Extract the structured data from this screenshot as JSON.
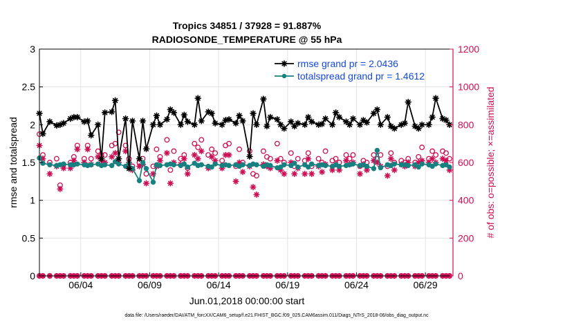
{
  "colors": {
    "rmse": "#000000",
    "spread": "#178080",
    "possible": "#cc0e54",
    "assimilated": "#cc0e54",
    "right_axis": "#cc0e54",
    "legend_text": "#1448d8",
    "grid": "#e3e3e3"
  },
  "chart_data": {
    "type": "line",
    "title": "Tropics 34851 / 37928 = 91.887%",
    "subtitle": "RADIOSONDE_TEMPERATURE @ 55 hPa",
    "xlabel": "Jun.01,2018 00:00:00 start",
    "ylabel": "rmse and totalspread",
    "y2label": "# of obs: o=possible; ×=assimilated",
    "xlim": [
      1,
      31
    ],
    "ylim": [
      0,
      3
    ],
    "y2lim": [
      0,
      1200
    ],
    "xticks": [
      4,
      9,
      14,
      19,
      24,
      29
    ],
    "xticklabels": [
      "06/04",
      "06/09",
      "06/14",
      "06/19",
      "06/24",
      "06/29"
    ],
    "yticks": [
      0,
      0.5,
      1,
      1.5,
      2,
      2.5,
      3
    ],
    "yticklabels": [
      "0",
      "0.5",
      "1",
      "1.5",
      "2",
      "2.5",
      "3"
    ],
    "y2ticks": [
      0,
      200,
      400,
      600,
      800,
      1000,
      1200
    ],
    "y2ticklabels": [
      "0",
      "200",
      "400",
      "600",
      "800",
      "1000",
      "1200"
    ],
    "legend": {
      "location": "top-right",
      "entries": [
        "rmse grand pr = 2.0436",
        "totalspread grand pr = 1.4612"
      ]
    },
    "footer": "data file: /Users/raeder/DAI/ATM_forcXX/CAM6_setup/f.e21.FHIST_BGC.f09_025.CAM6assim.011/Diags_NTrS_2018-06/obs_diag_output.nc",
    "x": [
      1.0,
      1.25,
      1.75,
      2.25,
      2.5,
      2.75,
      3.25,
      3.5,
      3.75,
      4.25,
      4.5,
      4.75,
      5.25,
      5.5,
      5.75,
      6.25,
      6.5,
      6.75,
      7.25,
      7.5,
      7.75,
      8.25,
      8.5,
      8.75,
      9.25,
      9.5,
      9.75,
      10.25,
      10.5,
      10.75,
      11.25,
      11.5,
      11.75,
      12.25,
      12.5,
      12.75,
      13.25,
      13.5,
      13.75,
      14.25,
      14.5,
      14.75,
      15.25,
      15.5,
      15.75,
      16.25,
      16.5,
      16.75,
      17.25,
      17.5,
      17.75,
      18.25,
      18.5,
      18.75,
      19.25,
      19.5,
      19.75,
      20.25,
      20.5,
      20.75,
      21.25,
      21.5,
      21.75,
      22.25,
      22.5,
      22.75,
      23.25,
      23.5,
      23.75,
      24.25,
      24.5,
      24.75,
      25.25,
      25.5,
      25.75,
      26.25,
      26.5,
      26.75,
      27.25,
      27.5,
      27.75,
      28.25,
      28.5,
      28.75,
      29.25,
      29.5,
      29.75,
      30.25,
      30.5,
      30.75
    ],
    "series": [
      {
        "name": "rmse",
        "values": [
          2.15,
          1.88,
          2.04,
          1.99,
          2.0,
          2.02,
          2.08,
          2.1,
          2.1,
          2.04,
          2.05,
          1.86,
          2.0,
          1.55,
          2.16,
          2.17,
          2.32,
          1.55,
          2.08,
          1.42,
          2.05,
          1.55,
          2.05,
          1.68,
          2.0,
          2.12,
          2.0,
          2.07,
          2.2,
          2.16,
          2.0,
          2.13,
          2.04,
          2.0,
          2.35,
          2.05,
          2.17,
          2.15,
          2.02,
          2.0,
          2.06,
          2.07,
          2.02,
          2.12,
          2.05,
          1.58,
          2.15,
          2.0,
          2.34,
          1.98,
          2.1,
          2.07,
          2.0,
          1.95,
          2.04,
          1.98,
          2.02,
          2.0,
          2.1,
          2.04,
          2.0,
          2.01,
          2.08,
          2.0,
          2.16,
          2.1,
          2.04,
          2.0,
          2.08,
          2.0,
          2.06,
          2.03,
          2.15,
          2.2,
          2.0,
          2.1,
          1.98,
          1.95,
          2.0,
          2.02,
          2.3,
          1.98,
          1.95,
          2.0,
          2.0,
          2.1,
          2.35,
          2.08,
          2.06,
          2.0
        ]
      },
      {
        "name": "totalspread",
        "values": [
          1.56,
          1.49,
          1.47,
          1.46,
          1.47,
          1.48,
          1.47,
          1.47,
          1.48,
          1.47,
          1.46,
          1.47,
          1.48,
          1.46,
          1.47,
          1.46,
          1.51,
          1.48,
          1.45,
          1.49,
          1.42,
          1.26,
          1.5,
          1.42,
          1.24,
          1.47,
          1.46,
          1.47,
          1.48,
          1.47,
          1.46,
          1.48,
          1.44,
          1.49,
          1.46,
          1.47,
          1.45,
          1.44,
          1.48,
          1.46,
          1.47,
          1.46,
          1.47,
          1.45,
          1.47,
          1.46,
          1.48,
          1.47,
          1.45,
          1.47,
          1.46,
          1.43,
          1.44,
          1.47,
          1.46,
          1.49,
          1.44,
          1.47,
          1.44,
          1.48,
          1.46,
          1.47,
          1.46,
          1.45,
          1.47,
          1.45,
          1.46,
          1.47,
          1.48,
          1.46,
          1.47,
          1.45,
          1.42,
          1.66,
          1.43,
          1.47,
          1.46,
          1.48,
          1.47,
          1.47,
          1.46,
          1.47,
          1.44,
          1.48,
          1.47,
          1.45,
          1.48,
          1.46,
          1.47,
          1.44
        ]
      },
      {
        "name": "possible",
        "values": [
          750,
          640,
          600,
          620,
          480,
          590,
          600,
          630,
          690,
          620,
          690,
          620,
          660,
          640,
          640,
          690,
          700,
          760,
          690,
          620,
          580,
          600,
          620,
          540,
          580,
          670,
          630,
          720,
          560,
          660,
          620,
          640,
          570,
          700,
          680,
          720,
          640,
          670,
          650,
          610,
          690,
          700,
          580,
          670,
          600,
          660,
          540,
          530,
          660,
          630,
          620,
          700,
          620,
          600,
          650,
          580,
          620,
          610,
          650,
          580,
          620,
          600,
          660,
          610,
          620,
          600,
          640,
          620,
          640,
          580,
          610,
          600,
          640,
          620,
          640,
          580,
          650,
          600,
          610,
          600,
          620,
          600,
          630,
          680,
          620,
          660,
          640,
          660,
          650,
          620
        ]
      },
      {
        "name": "assimilated",
        "values": [
          690,
          620,
          540,
          580,
          460,
          570,
          570,
          610,
          670,
          600,
          670,
          590,
          630,
          610,
          600,
          630,
          650,
          600,
          660,
          600,
          560,
          580,
          590,
          490,
          540,
          580,
          610,
          650,
          490,
          600,
          590,
          620,
          540,
          640,
          620,
          660,
          570,
          630,
          610,
          570,
          640,
          640,
          500,
          600,
          550,
          580,
          470,
          430,
          590,
          580,
          570,
          610,
          560,
          540,
          600,
          540,
          570,
          540,
          620,
          540,
          580,
          550,
          590,
          560,
          590,
          560,
          610,
          590,
          600,
          540,
          590,
          560,
          610,
          600,
          580,
          530,
          620,
          560,
          590,
          580,
          600,
          580,
          600,
          610,
          600,
          620,
          600,
          620,
          610,
          560
        ]
      }
    ]
  }
}
